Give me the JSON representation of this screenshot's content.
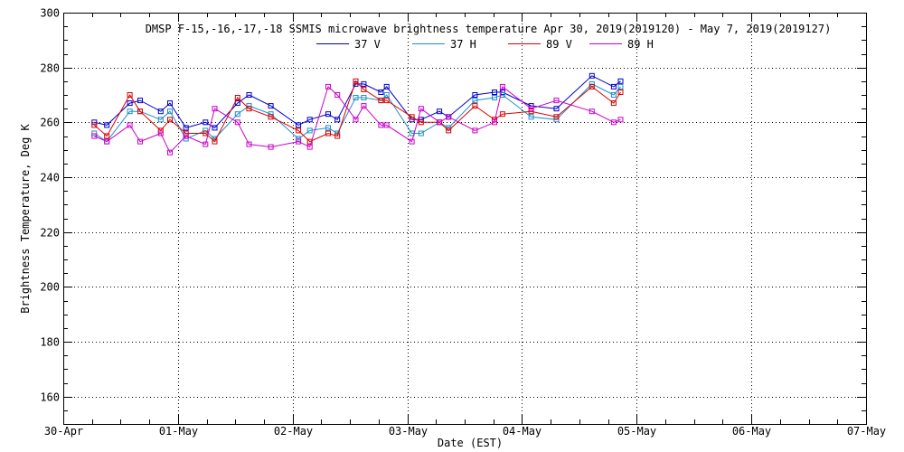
{
  "chart_data": {
    "type": "line",
    "title": "DMSP F-15,-16,-17,-18 SSMIS microwave brightness temperature Apr 30, 2019(2019120) - May  7, 2019(2019127)",
    "xlabel": "Date (EST)",
    "ylabel": "Brightness Temperature, Deg K",
    "xlim": [
      0,
      7
    ],
    "ylim": [
      150,
      300
    ],
    "xticks": [
      0,
      1,
      2,
      3,
      4,
      5,
      6,
      7
    ],
    "xtick_labels": [
      "30-Apr",
      "01-May",
      "02-May",
      "03-May",
      "04-May",
      "05-May",
      "06-May",
      "07-May"
    ],
    "yticks": [
      160,
      180,
      200,
      220,
      240,
      260,
      280,
      300
    ],
    "ytick_labels": [
      "160",
      "180",
      "200",
      "220",
      "240",
      "260",
      "280",
      "300"
    ],
    "grid": true,
    "legend_position": "top-center",
    "x": [
      0.27,
      0.38,
      0.58,
      0.67,
      0.85,
      0.93,
      1.07,
      1.24,
      1.32,
      1.52,
      1.62,
      1.81,
      2.05,
      2.15,
      2.31,
      2.39,
      2.55,
      2.62,
      2.77,
      2.82,
      3.04,
      3.12,
      3.28,
      3.36,
      3.59,
      3.76,
      3.83,
      4.08,
      4.3,
      4.61,
      4.8,
      4.86
    ],
    "series": [
      {
        "name": "37 V",
        "color": "#0000cc",
        "values": [
          260,
          259,
          267,
          268,
          264,
          267,
          258,
          260,
          258,
          267,
          270,
          266,
          259,
          261,
          263,
          261,
          274,
          274,
          271,
          273,
          261,
          261,
          264,
          262,
          270,
          271,
          271,
          266,
          265,
          277,
          273,
          275
        ]
      },
      {
        "name": "37 H",
        "color": "#1e90c8",
        "values": [
          256,
          253,
          264,
          264,
          261,
          264,
          254,
          257,
          254,
          263,
          266,
          263,
          254,
          257,
          258,
          256,
          269,
          269,
          268,
          270,
          256,
          256,
          260,
          258,
          268,
          269,
          270,
          262,
          261,
          274,
          270,
          273
        ]
      },
      {
        "name": "89 V",
        "color": "#dd0000",
        "values": [
          259,
          255,
          270,
          264,
          257,
          261,
          256,
          256,
          253,
          269,
          265,
          262,
          257,
          253,
          256,
          255,
          275,
          272,
          268,
          268,
          262,
          260,
          260,
          257,
          266,
          261,
          263,
          264,
          262,
          273,
          267,
          271
        ]
      },
      {
        "name": "89 H",
        "color": "#cc00cc",
        "values": [
          255,
          253,
          259,
          253,
          256,
          249,
          255,
          252,
          265,
          260,
          252,
          251,
          253,
          251,
          273,
          270,
          261,
          266,
          259,
          259,
          253,
          265,
          260,
          262,
          257,
          260,
          273,
          265,
          268,
          264,
          260,
          261
        ]
      }
    ]
  }
}
